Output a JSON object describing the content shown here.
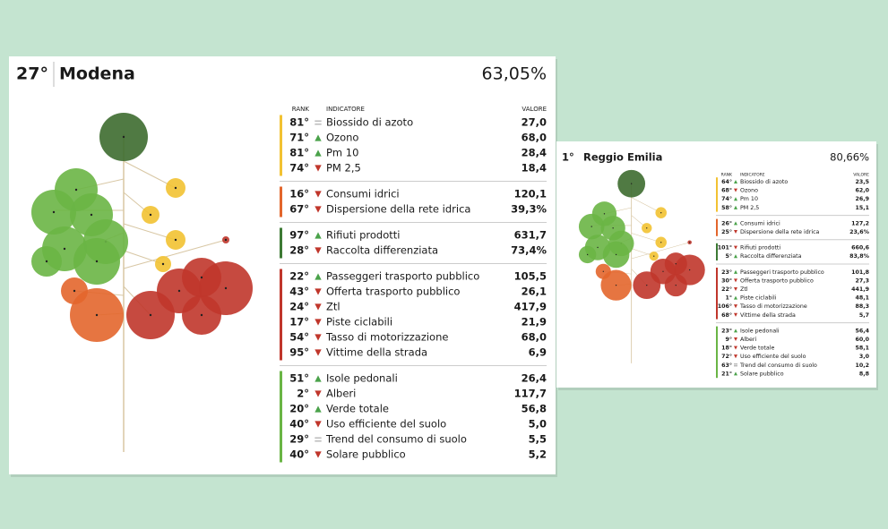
{
  "cards": [
    {
      "rank": "27°",
      "city": "Modena",
      "score": "63,05%",
      "columns": {
        "rank": "RANK",
        "indicator": "INDICATORE",
        "value": "VALORE"
      },
      "groups": [
        {
          "color": "#f2c232",
          "rows": [
            {
              "rank": "81°",
              "trend": "eq",
              "name": "Biossido di azoto",
              "value": "27,0"
            },
            {
              "rank": "71°",
              "trend": "up",
              "name": "Ozono",
              "value": "68,0"
            },
            {
              "rank": "81°",
              "trend": "up",
              "name": "Pm 10",
              "value": "28,4"
            },
            {
              "rank": "74°",
              "trend": "down",
              "name": "PM 2,5",
              "value": "18,4"
            }
          ]
        },
        {
          "color": "#e3662c",
          "rows": [
            {
              "rank": "16°",
              "trend": "down",
              "name": "Consumi idrici",
              "value": "120,1"
            },
            {
              "rank": "67°",
              "trend": "down",
              "name": "Dispersione della rete idrica",
              "value": "39,3%"
            }
          ]
        },
        {
          "color": "#3d7a34",
          "rows": [
            {
              "rank": "97°",
              "trend": "up",
              "name": "Rifiuti prodotti",
              "value": "631,7"
            },
            {
              "rank": "28°",
              "trend": "down",
              "name": "Raccolta differenziata",
              "value": "73,4%"
            }
          ]
        },
        {
          "color": "#c0362b",
          "rows": [
            {
              "rank": "22°",
              "trend": "up",
              "name": "Passeggeri trasporto pubblico",
              "value": "105,5"
            },
            {
              "rank": "43°",
              "trend": "down",
              "name": "Offerta trasporto pubblico",
              "value": "26,1"
            },
            {
              "rank": "24°",
              "trend": "down",
              "name": "Ztl",
              "value": "417,9"
            },
            {
              "rank": "17°",
              "trend": "down",
              "name": "Piste ciclabili",
              "value": "21,9"
            },
            {
              "rank": "54°",
              "trend": "down",
              "name": "Tasso di motorizzazione",
              "value": "68,0"
            },
            {
              "rank": "95°",
              "trend": "down",
              "name": "Vittime della strada",
              "value": "6,9"
            }
          ]
        },
        {
          "color": "#6ab545",
          "rows": [
            {
              "rank": "51°",
              "trend": "up",
              "name": "Isole pedonali",
              "value": "26,4"
            },
            {
              "rank": "2°",
              "trend": "down",
              "name": "Alberi",
              "value": "117,7"
            },
            {
              "rank": "20°",
              "trend": "up",
              "name": "Verde totale",
              "value": "56,8"
            },
            {
              "rank": "40°",
              "trend": "down",
              "name": "Uso efficiente del suolo",
              "value": "5,0"
            },
            {
              "rank": "29°",
              "trend": "eq",
              "name": "Trend del consumo di suolo",
              "value": "5,5"
            },
            {
              "rank": "40°",
              "trend": "down",
              "name": "Solare pubblico",
              "value": "5,2"
            }
          ]
        }
      ]
    },
    {
      "rank": "1°",
      "city": "Reggio Emilia",
      "score": "80,66%",
      "columns": {
        "rank": "RANK",
        "indicator": "INDICATORE",
        "value": "VALORE"
      },
      "groups": [
        {
          "color": "#f2c232",
          "rows": [
            {
              "rank": "64°",
              "trend": "up",
              "name": "Biossido di azoto",
              "value": "23,5"
            },
            {
              "rank": "68°",
              "trend": "down",
              "name": "Ozono",
              "value": "62,0"
            },
            {
              "rank": "74°",
              "trend": "up",
              "name": "Pm 10",
              "value": "26,9"
            },
            {
              "rank": "58°",
              "trend": "up",
              "name": "PM 2,5",
              "value": "15,1"
            }
          ]
        },
        {
          "color": "#e3662c",
          "rows": [
            {
              "rank": "26°",
              "trend": "up",
              "name": "Consumi idrici",
              "value": "127,2"
            },
            {
              "rank": "25°",
              "trend": "down",
              "name": "Dispersione della rete idrica",
              "value": "23,6%"
            }
          ]
        },
        {
          "color": "#3d7a34",
          "rows": [
            {
              "rank": "101°",
              "trend": "down",
              "name": "Rifiuti prodotti",
              "value": "660,6"
            },
            {
              "rank": "5°",
              "trend": "up",
              "name": "Raccolta differenziata",
              "value": "83,8%"
            }
          ]
        },
        {
          "color": "#c0362b",
          "rows": [
            {
              "rank": "23°",
              "trend": "up",
              "name": "Passeggeri trasporto pubblico",
              "value": "101,8"
            },
            {
              "rank": "30°",
              "trend": "down",
              "name": "Offerta trasporto pubblico",
              "value": "27,3"
            },
            {
              "rank": "22°",
              "trend": "down",
              "name": "Ztl",
              "value": "441,9"
            },
            {
              "rank": "1°",
              "trend": "up",
              "name": "Piste ciclabili",
              "value": "48,1"
            },
            {
              "rank": "106°",
              "trend": "down",
              "name": "Tasso di motorizzazione",
              "value": "88,3"
            },
            {
              "rank": "68°",
              "trend": "down",
              "name": "Vittime della strada",
              "value": "5,7"
            }
          ]
        },
        {
          "color": "#6ab545",
          "rows": [
            {
              "rank": "23°",
              "trend": "up",
              "name": "Isole pedonali",
              "value": "56,4"
            },
            {
              "rank": "9°",
              "trend": "down",
              "name": "Alberi",
              "value": "60,0"
            },
            {
              "rank": "18°",
              "trend": "down",
              "name": "Verde totale",
              "value": "58,1"
            },
            {
              "rank": "72°",
              "trend": "down",
              "name": "Uso efficiente del suolo",
              "value": "3,0"
            },
            {
              "rank": "63°",
              "trend": "eq",
              "name": "Trend del consumo di suolo",
              "value": "10,2"
            },
            {
              "rank": "21°",
              "trend": "up",
              "name": "Solare pubblico",
              "value": "8,8"
            }
          ]
        }
      ]
    }
  ]
}
